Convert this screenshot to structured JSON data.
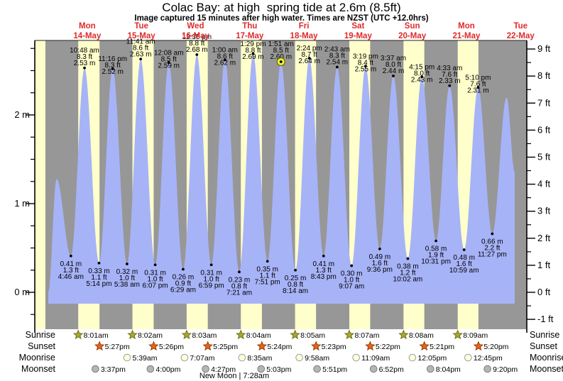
{
  "title": "Colac Bay: at high  spring tide at 2.6m (8.5ft)",
  "subtitle": "Image captured 15 minutes after high water. Times are NZST (UTC +12.0hrs)",
  "chart_data": {
    "type": "area",
    "title": "Colac Bay: at high  spring tide at 2.6m (8.5ft)",
    "subtitle": "Image captured 15 minutes after high water. Times are NZST (UTC +12.0hrs)",
    "x_axis": {
      "kind": "time",
      "days": [
        {
          "weekday": "Mon",
          "date": "14-May"
        },
        {
          "weekday": "Tue",
          "date": "15-May"
        },
        {
          "weekday": "Wed",
          "date": "16-May"
        },
        {
          "weekday": "Thu",
          "date": "17-May"
        },
        {
          "weekday": "Fri",
          "date": "18-May"
        },
        {
          "weekday": "Sat",
          "date": "19-May"
        },
        {
          "weekday": "Sun",
          "date": "20-May"
        },
        {
          "weekday": "Mon",
          "date": "21-May"
        },
        {
          "weekday": "Tue",
          "date": "22-May"
        }
      ]
    },
    "y_left": {
      "unit": "m",
      "majors": [
        2,
        1,
        0
      ],
      "minor_step": 0.25,
      "range_m": [
        -0.42,
        2.84
      ]
    },
    "y_right": {
      "unit": "ft",
      "majors": [
        9,
        8,
        7,
        6,
        5,
        4,
        3,
        2,
        1,
        0,
        -1
      ],
      "minor_step": 0.5
    },
    "legend": "none",
    "grid": false,
    "colors": {
      "night": "#979797",
      "daylight": "#ffffcc",
      "water": "#a7b3f7",
      "date_red": "#e02a2a",
      "marker_yellow": "#f0ef3c",
      "marker_ring": "#6b6b00"
    },
    "captured_note": "yellow circle marks high water 1:51 am Fri 18-May (2.60 m)",
    "daylight_bands": [
      {
        "day": -1,
        "rise_h": 8.03,
        "set_h": 17.47
      },
      {
        "day": 0,
        "rise_h": 8.017,
        "set_h": 17.45
      },
      {
        "day": 1,
        "rise_h": 8.033,
        "set_h": 17.433
      },
      {
        "day": 2,
        "rise_h": 8.05,
        "set_h": 17.417
      },
      {
        "day": 3,
        "rise_h": 8.067,
        "set_h": 17.4
      },
      {
        "day": 4,
        "rise_h": 8.083,
        "set_h": 17.383
      },
      {
        "day": 5,
        "rise_h": 8.117,
        "set_h": 17.367
      },
      {
        "day": 6,
        "rise_h": 8.133,
        "set_h": 17.35
      },
      {
        "day": 7,
        "rise_h": 8.15,
        "set_h": 17.333
      }
    ],
    "tides": [
      {
        "type": "L",
        "day": -1,
        "hour": 18.75,
        "height_m": 0.0,
        "phantom": true
      },
      {
        "type": "H",
        "day": -1,
        "hour": 22.4,
        "height_m": 1.28,
        "phantom": true
      },
      {
        "type": "L",
        "day": 0,
        "hour": 4.767,
        "height_m": 0.41,
        "labels": {
          "m": "0.41 m",
          "ft": "1.3 ft",
          "time": "4:46 am"
        }
      },
      {
        "type": "H",
        "day": 0,
        "hour": 10.8,
        "height_m": 2.53,
        "labels": {
          "time": "10:48 am",
          "ft": "8.3 ft",
          "m": "2.53 m"
        }
      },
      {
        "type": "L",
        "day": 0,
        "hour": 17.233,
        "height_m": 0.33,
        "labels": {
          "m": "0.33 m",
          "ft": "1.1 ft",
          "time": "5:14 pm"
        }
      },
      {
        "type": "H",
        "day": 0,
        "hour": 23.267,
        "height_m": 2.52,
        "labels": {
          "time": "11:16 pm",
          "ft": "8.3 ft",
          "m": "2.52 m"
        }
      },
      {
        "type": "L",
        "day": 1,
        "hour": 5.633,
        "height_m": 0.32,
        "labels": {
          "m": "0.32 m",
          "ft": "1.0 ft",
          "time": "5:38 am"
        }
      },
      {
        "type": "H",
        "day": 1,
        "hour": 11.683,
        "height_m": 2.63,
        "labels": {
          "time": "11:41 am",
          "ft": "8.6 ft",
          "m": "2.63 m"
        }
      },
      {
        "type": "L",
        "day": 1,
        "hour": 18.117,
        "height_m": 0.31,
        "labels": {
          "m": "0.31 m",
          "ft": "1.0 ft",
          "time": "6:07 pm"
        }
      },
      {
        "type": "H",
        "day": 2,
        "hour": 0.133,
        "height_m": 2.59,
        "labels": {
          "time": "12:08 am",
          "ft": "8.5 ft",
          "m": "2.59 m"
        }
      },
      {
        "type": "L",
        "day": 2,
        "hour": 6.483,
        "height_m": 0.26,
        "labels": {
          "m": "0.26 m",
          "ft": "0.9 ft",
          "time": "6:29 am"
        }
      },
      {
        "type": "H",
        "day": 2,
        "hour": 12.583,
        "height_m": 2.68,
        "labels": {
          "time": "12:35 pm",
          "ft": "8.8 ft",
          "m": "2.68 m"
        }
      },
      {
        "type": "L",
        "day": 2,
        "hour": 18.983,
        "height_m": 0.31,
        "labels": {
          "m": "0.31 m",
          "ft": "1.0 ft",
          "time": "6:59 pm"
        }
      },
      {
        "type": "H",
        "day": 3,
        "hour": 1.0,
        "height_m": 2.62,
        "labels": {
          "time": "1:00 am",
          "ft": "8.6 ft",
          "m": "2.62 m"
        }
      },
      {
        "type": "L",
        "day": 3,
        "hour": 7.35,
        "height_m": 0.23,
        "labels": {
          "m": "0.23 m",
          "ft": "0.8 ft",
          "time": "7:21 am"
        }
      },
      {
        "type": "H",
        "day": 3,
        "hour": 13.483,
        "height_m": 2.69,
        "labels": {
          "time": "1:29 pm",
          "ft": "8.8 ft",
          "m": "2.69 m"
        }
      },
      {
        "type": "L",
        "day": 3,
        "hour": 19.85,
        "height_m": 0.35,
        "labels": {
          "m": "0.35 m",
          "ft": "1.1 ft",
          "time": "7:51 pm"
        }
      },
      {
        "type": "H",
        "day": 4,
        "hour": 1.85,
        "height_m": 2.6,
        "captured": true,
        "labels": {
          "time": "1:51 am",
          "ft": "8.5 ft",
          "m": "2.60 m"
        }
      },
      {
        "type": "L",
        "day": 4,
        "hour": 8.233,
        "height_m": 0.25,
        "labels": {
          "m": "0.25 m",
          "ft": "0.8 ft",
          "time": "8:14 am"
        }
      },
      {
        "type": "H",
        "day": 4,
        "hour": 14.4,
        "height_m": 2.64,
        "labels": {
          "time": "2:24 pm",
          "ft": "8.7 ft",
          "m": "2.64 m"
        }
      },
      {
        "type": "L",
        "day": 4,
        "hour": 20.717,
        "height_m": 0.41,
        "labels": {
          "m": "0.41 m",
          "ft": "1.3 ft",
          "time": "8:43 pm"
        }
      },
      {
        "type": "H",
        "day": 5,
        "hour": 2.717,
        "height_m": 2.54,
        "labels": {
          "time": "2:43 am",
          "ft": "8.3 ft",
          "m": "2.54 m"
        }
      },
      {
        "type": "L",
        "day": 5,
        "hour": 9.117,
        "height_m": 0.3,
        "labels": {
          "m": "0.30 m",
          "ft": "1.0 ft",
          "time": "9:07 am"
        }
      },
      {
        "type": "H",
        "day": 5,
        "hour": 15.317,
        "height_m": 2.55,
        "labels": {
          "time": "3:19 pm",
          "ft": "8.4 ft",
          "m": "2.55 m"
        }
      },
      {
        "type": "L",
        "day": 5,
        "hour": 21.6,
        "height_m": 0.49,
        "labels": {
          "m": "0.49 m",
          "ft": "1.6 ft",
          "time": "9:36 pm"
        }
      },
      {
        "type": "H",
        "day": 6,
        "hour": 3.617,
        "height_m": 2.44,
        "labels": {
          "time": "3:37 am",
          "ft": "8.0 ft",
          "m": "2.44 m"
        }
      },
      {
        "type": "L",
        "day": 6,
        "hour": 10.033,
        "height_m": 0.38,
        "labels": {
          "m": "0.38 m",
          "ft": "1.2 ft",
          "time": "10:02 am"
        }
      },
      {
        "type": "H",
        "day": 6,
        "hour": 16.25,
        "height_m": 2.43,
        "labels": {
          "time": "4:15 pm",
          "ft": "8.0 ft",
          "m": "2.43 m"
        }
      },
      {
        "type": "L",
        "day": 6,
        "hour": 22.517,
        "height_m": 0.58,
        "labels": {
          "m": "0.58 m",
          "ft": "1.9 ft",
          "time": "10:31 pm"
        }
      },
      {
        "type": "H",
        "day": 7,
        "hour": 4.55,
        "height_m": 2.33,
        "labels": {
          "time": "4:33 am",
          "ft": "7.6 ft",
          "m": "2.33 m"
        }
      },
      {
        "type": "L",
        "day": 7,
        "hour": 10.983,
        "height_m": 0.48,
        "labels": {
          "m": "0.48 m",
          "ft": "1.6 ft",
          "time": "10:59 am"
        }
      },
      {
        "type": "H",
        "day": 7,
        "hour": 17.167,
        "height_m": 2.31,
        "labels": {
          "time": "5:10 pm",
          "ft": "7.6 ft",
          "m": "2.31 m"
        }
      },
      {
        "type": "L",
        "day": 7,
        "hour": 23.45,
        "height_m": 0.66,
        "labels": {
          "m": "0.66 m",
          "ft": "2.2 ft",
          "time": "11:27 pm"
        }
      },
      {
        "type": "H",
        "day": 8,
        "hour": 5.83,
        "height_m": 2.2,
        "phantom": true
      },
      {
        "type": "L",
        "day": 8,
        "hour": 9.4,
        "height_m": 1.35,
        "phantom": true,
        "end": true
      }
    ]
  },
  "astro": {
    "row_labels": [
      "Sunrise",
      "Sunset",
      "Moonrise",
      "Moonset"
    ],
    "new_moon": "New Moon | 7:28am",
    "icon_colors": {
      "sunrise": {
        "fill": "#a7a62f",
        "stroke": "#74711c"
      },
      "sunset": {
        "fill": "#e0661c",
        "stroke": "#9e3b05"
      },
      "moonrise": {
        "fill": "#ffffd9",
        "stroke": "#a0a0a0"
      },
      "moonset": {
        "fill": "#b5b5b5",
        "stroke": "#7d7d7d"
      }
    },
    "sunrise": [
      {
        "day": 0,
        "hour": 8.017,
        "label": "8:01am"
      },
      {
        "day": 1,
        "hour": 8.033,
        "label": "8:02am"
      },
      {
        "day": 2,
        "hour": 8.05,
        "label": "8:03am"
      },
      {
        "day": 3,
        "hour": 8.067,
        "label": "8:04am"
      },
      {
        "day": 4,
        "hour": 8.083,
        "label": "8:05am"
      },
      {
        "day": 5,
        "hour": 8.117,
        "label": "8:07am"
      },
      {
        "day": 6,
        "hour": 8.133,
        "label": "8:08am"
      },
      {
        "day": 7,
        "hour": 8.15,
        "label": "8:09am"
      }
    ],
    "sunset": [
      {
        "day": 0,
        "hour": 17.45,
        "label": "5:27pm"
      },
      {
        "day": 1,
        "hour": 17.433,
        "label": "5:26pm"
      },
      {
        "day": 2,
        "hour": 17.417,
        "label": "5:25pm"
      },
      {
        "day": 3,
        "hour": 17.4,
        "label": "5:24pm"
      },
      {
        "day": 4,
        "hour": 17.383,
        "label": "5:23pm"
      },
      {
        "day": 5,
        "hour": 17.367,
        "label": "5:22pm"
      },
      {
        "day": 6,
        "hour": 17.35,
        "label": "5:21pm"
      },
      {
        "day": 7,
        "hour": 17.333,
        "label": "5:20pm"
      }
    ],
    "moonrise": [
      {
        "day": 1,
        "hour": 5.65,
        "label": "5:39am"
      },
      {
        "day": 2,
        "hour": 7.117,
        "label": "7:07am"
      },
      {
        "day": 3,
        "hour": 8.583,
        "label": "8:35am"
      },
      {
        "day": 4,
        "hour": 9.967,
        "label": "9:58am"
      },
      {
        "day": 5,
        "hour": 11.15,
        "label": "11:09am"
      },
      {
        "day": 6,
        "hour": 12.083,
        "label": "12:05pm"
      },
      {
        "day": 7,
        "hour": 12.75,
        "label": "12:45pm"
      }
    ],
    "moonset": [
      {
        "day": 0,
        "hour": 15.617,
        "label": "3:37pm"
      },
      {
        "day": 1,
        "hour": 16.0,
        "label": "4:00pm"
      },
      {
        "day": 2,
        "hour": 16.45,
        "label": "4:27pm"
      },
      {
        "day": 3,
        "hour": 17.05,
        "label": "5:03pm"
      },
      {
        "day": 4,
        "hour": 17.85,
        "label": "5:51pm"
      },
      {
        "day": 5,
        "hour": 18.867,
        "label": "6:52pm"
      },
      {
        "day": 6,
        "hour": 20.067,
        "label": "8:04pm"
      },
      {
        "day": 7,
        "hour": 21.333,
        "label": "9:20pm"
      }
    ]
  }
}
